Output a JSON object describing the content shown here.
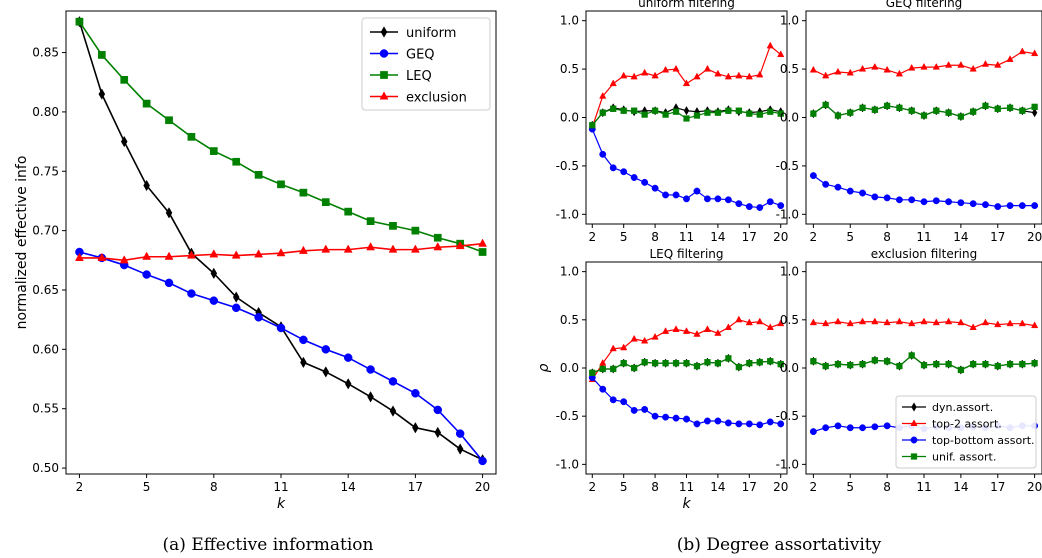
{
  "captions": {
    "a": "(a) Effective information",
    "b": "(b) Degree assortativity"
  },
  "colors": {
    "black": "#000000",
    "blue": "#0000ff",
    "green": "#008000",
    "red": "#ff0000"
  },
  "chart_data": [
    {
      "type": "line",
      "xlabel": "k",
      "ylabel": "normalized effective info",
      "xlim": [
        1.4,
        20.6
      ],
      "ylim": [
        0.495,
        0.885
      ],
      "xticks": [
        2,
        5,
        8,
        11,
        14,
        17,
        20
      ],
      "yticks": [
        0.5,
        0.55,
        0.6,
        0.65,
        0.7,
        0.75,
        0.8,
        0.85
      ],
      "legend_position": "top-right",
      "x": [
        2,
        3,
        4,
        5,
        6,
        7,
        8,
        9,
        10,
        11,
        12,
        13,
        14,
        15,
        16,
        17,
        18,
        19,
        20
      ],
      "series": [
        {
          "name": "uniform",
          "color": "#000000",
          "marker": "diamond",
          "values": [
            0.876,
            0.815,
            0.775,
            0.738,
            0.715,
            0.681,
            0.664,
            0.644,
            0.631,
            0.619,
            0.589,
            0.581,
            0.571,
            0.56,
            0.548,
            0.534,
            0.53,
            0.516,
            0.507
          ]
        },
        {
          "name": "GEQ",
          "color": "#0000ff",
          "marker": "circle",
          "values": [
            0.682,
            0.677,
            0.671,
            0.663,
            0.656,
            0.647,
            0.641,
            0.635,
            0.627,
            0.618,
            0.608,
            0.6,
            0.593,
            0.583,
            0.573,
            0.563,
            0.549,
            0.529,
            0.506
          ]
        },
        {
          "name": "LEQ",
          "color": "#008000",
          "marker": "square",
          "values": [
            0.876,
            0.848,
            0.827,
            0.807,
            0.793,
            0.779,
            0.767,
            0.758,
            0.747,
            0.739,
            0.732,
            0.724,
            0.716,
            0.708,
            0.704,
            0.7,
            0.694,
            0.689,
            0.682
          ]
        },
        {
          "name": "exclusion",
          "color": "#ff0000",
          "marker": "triangle",
          "values": [
            0.677,
            0.677,
            0.675,
            0.678,
            0.678,
            0.679,
            0.68,
            0.679,
            0.68,
            0.681,
            0.683,
            0.684,
            0.684,
            0.686,
            0.684,
            0.684,
            0.686,
            0.687,
            0.689
          ]
        }
      ]
    },
    {
      "type": "line",
      "title": "uniform filtering",
      "xlim": [
        1.4,
        20.6
      ],
      "ylim": [
        -1.1,
        1.1
      ],
      "xticks": [
        2,
        5,
        8,
        11,
        14,
        17,
        20
      ],
      "yticks": [
        -1.0,
        -0.5,
        0.0,
        0.5,
        1.0
      ],
      "show_xlabel": false,
      "show_ylabel": false,
      "x": [
        2,
        3,
        4,
        5,
        6,
        7,
        8,
        9,
        10,
        11,
        12,
        13,
        14,
        15,
        16,
        17,
        18,
        19,
        20
      ],
      "series": [
        {
          "color": "#000000",
          "marker": "diamond",
          "values": [
            -0.08,
            0.05,
            0.1,
            0.08,
            0.06,
            0.07,
            0.07,
            0.05,
            0.1,
            0.07,
            0.06,
            0.07,
            0.06,
            0.08,
            0.06,
            0.05,
            0.06,
            0.08,
            0.06
          ]
        },
        {
          "color": "#ff0000",
          "marker": "triangle",
          "values": [
            -0.1,
            0.22,
            0.35,
            0.43,
            0.42,
            0.46,
            0.43,
            0.49,
            0.5,
            0.35,
            0.42,
            0.5,
            0.45,
            0.42,
            0.43,
            0.42,
            0.44,
            0.74,
            0.65
          ]
        },
        {
          "color": "#0000ff",
          "marker": "circle",
          "values": [
            -0.12,
            -0.38,
            -0.52,
            -0.56,
            -0.62,
            -0.67,
            -0.73,
            -0.8,
            -0.8,
            -0.84,
            -0.76,
            -0.84,
            -0.84,
            -0.85,
            -0.89,
            -0.92,
            -0.93,
            -0.87,
            -0.91
          ]
        },
        {
          "color": "#008000",
          "marker": "square",
          "values": [
            -0.08,
            0.05,
            0.09,
            0.07,
            0.07,
            0.03,
            0.07,
            0.03,
            0.06,
            -0.01,
            0.02,
            0.05,
            0.05,
            0.07,
            0.07,
            0.04,
            0.03,
            0.06,
            0.04
          ]
        }
      ]
    },
    {
      "type": "line",
      "title": "GEQ filtering",
      "xlim": [
        1.4,
        20.6
      ],
      "ylim": [
        -1.1,
        1.1
      ],
      "xticks": [
        2,
        5,
        8,
        11,
        14,
        17,
        20
      ],
      "yticks": [
        -1.0,
        -0.5,
        0.0,
        0.5,
        1.0
      ],
      "show_xlabel": false,
      "show_ylabel": false,
      "x": [
        2,
        3,
        4,
        5,
        6,
        7,
        8,
        9,
        10,
        11,
        12,
        13,
        14,
        15,
        16,
        17,
        18,
        19,
        20
      ],
      "series": [
        {
          "color": "#000000",
          "marker": "diamond",
          "values": [
            0.04,
            0.13,
            0.02,
            0.05,
            0.1,
            0.08,
            0.12,
            0.1,
            0.07,
            0.02,
            0.07,
            0.05,
            0.01,
            0.06,
            0.12,
            0.09,
            0.1,
            0.07,
            0.05
          ]
        },
        {
          "color": "#ff0000",
          "marker": "triangle",
          "values": [
            0.49,
            0.43,
            0.47,
            0.46,
            0.5,
            0.52,
            0.49,
            0.45,
            0.51,
            0.52,
            0.52,
            0.54,
            0.54,
            0.5,
            0.55,
            0.54,
            0.6,
            0.68,
            0.66
          ]
        },
        {
          "color": "#0000ff",
          "marker": "circle",
          "values": [
            -0.6,
            -0.69,
            -0.72,
            -0.76,
            -0.78,
            -0.82,
            -0.83,
            -0.85,
            -0.85,
            -0.87,
            -0.86,
            -0.87,
            -0.88,
            -0.89,
            -0.9,
            -0.92,
            -0.91,
            -0.91,
            -0.91
          ]
        },
        {
          "color": "#008000",
          "marker": "square",
          "values": [
            0.04,
            0.13,
            0.02,
            0.05,
            0.1,
            0.08,
            0.12,
            0.1,
            0.07,
            0.02,
            0.07,
            0.05,
            0.01,
            0.06,
            0.12,
            0.09,
            0.1,
            0.07,
            0.11
          ]
        }
      ]
    },
    {
      "type": "line",
      "title": "LEQ filtering",
      "xlabel": "k",
      "ylabel": "ρ",
      "xlim": [
        1.4,
        20.6
      ],
      "ylim": [
        -1.1,
        1.1
      ],
      "xticks": [
        2,
        5,
        8,
        11,
        14,
        17,
        20
      ],
      "yticks": [
        -1.0,
        -0.5,
        0.0,
        0.5,
        1.0
      ],
      "show_xlabel": true,
      "show_ylabel": true,
      "x": [
        2,
        3,
        4,
        5,
        6,
        7,
        8,
        9,
        10,
        11,
        12,
        13,
        14,
        15,
        16,
        17,
        18,
        19,
        20
      ],
      "series": [
        {
          "color": "#000000",
          "marker": "diamond",
          "values": [
            -0.05,
            -0.01,
            -0.01,
            0.05,
            0.0,
            0.06,
            0.05,
            0.05,
            0.05,
            0.05,
            0.02,
            0.06,
            0.05,
            0.1,
            0.01,
            0.05,
            0.06,
            0.07,
            0.04
          ]
        },
        {
          "color": "#ff0000",
          "marker": "triangle",
          "values": [
            -0.12,
            0.05,
            0.2,
            0.21,
            0.3,
            0.28,
            0.32,
            0.38,
            0.4,
            0.38,
            0.35,
            0.4,
            0.36,
            0.42,
            0.5,
            0.47,
            0.48,
            0.42,
            0.46
          ]
        },
        {
          "color": "#0000ff",
          "marker": "circle",
          "values": [
            -0.1,
            -0.22,
            -0.33,
            -0.35,
            -0.44,
            -0.43,
            -0.5,
            -0.51,
            -0.52,
            -0.53,
            -0.58,
            -0.55,
            -0.55,
            -0.57,
            -0.58,
            -0.58,
            -0.59,
            -0.56,
            -0.58
          ]
        },
        {
          "color": "#008000",
          "marker": "square",
          "values": [
            -0.05,
            -0.01,
            -0.01,
            0.05,
            0.0,
            0.06,
            0.05,
            0.05,
            0.05,
            0.05,
            0.02,
            0.06,
            0.05,
            0.1,
            0.01,
            0.05,
            0.06,
            0.07,
            0.04
          ]
        }
      ]
    },
    {
      "type": "line",
      "title": "exclusion filtering",
      "xlim": [
        1.4,
        20.6
      ],
      "ylim": [
        -1.1,
        1.1
      ],
      "xticks": [
        2,
        5,
        8,
        11,
        14,
        17,
        20
      ],
      "yticks": [
        -1.0,
        -0.5,
        0.0,
        0.5,
        1.0
      ],
      "show_xlabel": false,
      "show_ylabel": false,
      "legend_position": "bottom-right",
      "legend": [
        "dyn.assort.",
        "top-2 assort.",
        "top-bottom assort.",
        "unif. assort."
      ],
      "x": [
        2,
        3,
        4,
        5,
        6,
        7,
        8,
        9,
        10,
        11,
        12,
        13,
        14,
        15,
        16,
        17,
        18,
        19,
        20
      ],
      "series": [
        {
          "color": "#000000",
          "marker": "diamond",
          "values": [
            0.07,
            0.02,
            0.04,
            0.03,
            0.04,
            0.08,
            0.07,
            0.02,
            0.13,
            0.03,
            0.04,
            0.04,
            -0.02,
            0.04,
            0.04,
            0.02,
            0.04,
            0.04,
            0.05
          ]
        },
        {
          "color": "#ff0000",
          "marker": "triangle",
          "values": [
            0.47,
            0.46,
            0.48,
            0.46,
            0.48,
            0.48,
            0.47,
            0.48,
            0.46,
            0.48,
            0.47,
            0.48,
            0.47,
            0.42,
            0.47,
            0.45,
            0.46,
            0.46,
            0.44
          ]
        },
        {
          "color": "#0000ff",
          "marker": "circle",
          "values": [
            -0.66,
            -0.62,
            -0.6,
            -0.62,
            -0.62,
            -0.61,
            -0.6,
            -0.62,
            -0.6,
            -0.63,
            -0.61,
            -0.62,
            -0.62,
            -0.61,
            -0.62,
            -0.6,
            -0.62,
            -0.6,
            -0.6
          ]
        },
        {
          "color": "#008000",
          "marker": "square",
          "values": [
            0.07,
            0.02,
            0.04,
            0.03,
            0.04,
            0.08,
            0.07,
            0.02,
            0.13,
            0.03,
            0.04,
            0.04,
            -0.02,
            0.04,
            0.04,
            0.02,
            0.04,
            0.04,
            0.05
          ]
        }
      ]
    }
  ]
}
